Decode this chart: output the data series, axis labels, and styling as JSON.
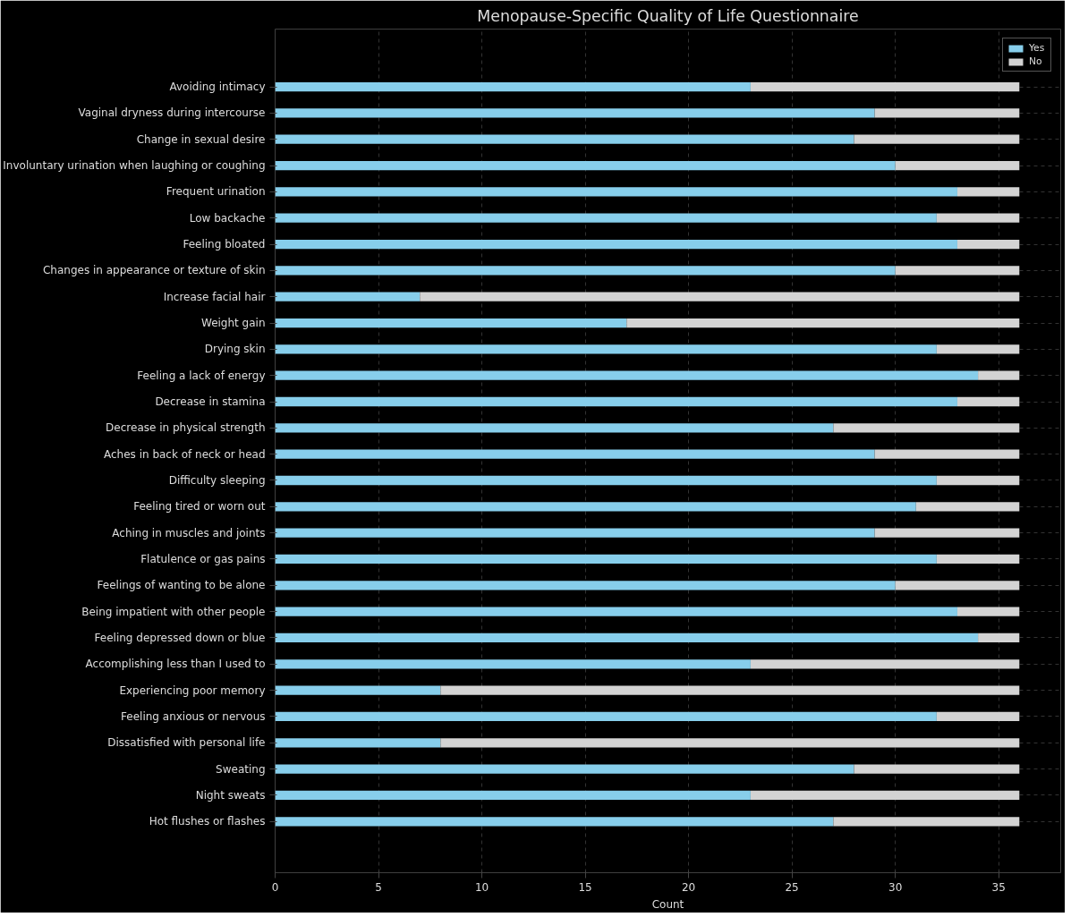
{
  "chart_data": {
    "type": "bar",
    "orientation": "horizontal",
    "stacked": true,
    "title": "Menopause-Specific Quality of Life Questionnaire",
    "xlabel": "Count",
    "categories": [
      "Avoiding intimacy",
      "Vaginal dryness during intercourse",
      "Change in sexual desire",
      "Involuntary urination when laughing or coughing",
      "Frequent urination",
      "Low backache",
      "Feeling bloated",
      "Changes in appearance or texture of skin",
      "Increase facial hair",
      "Weight gain",
      "Drying skin",
      "Feeling a lack of energy",
      "Decrease in stamina",
      "Decrease in physical strength",
      "Aches in back of neck or head",
      "Difficulty sleeping",
      "Feeling tired or worn out",
      "Aching in muscles and joints",
      "Flatulence or gas pains",
      "Feelings of wanting to be alone",
      "Being impatient with other people",
      "Feeling depressed down or blue",
      "Accomplishing less than I used to",
      "Experiencing poor memory",
      "Feeling anxious or nervous",
      "Dissatisfied with personal life",
      "Sweating",
      "Night sweats",
      "Hot flushes or flashes"
    ],
    "series": [
      {
        "name": "Yes",
        "color": "#87ceeb",
        "values": [
          23,
          29,
          28,
          30,
          33,
          32,
          33,
          30,
          7,
          17,
          32,
          34,
          33,
          27,
          29,
          32,
          31,
          29,
          32,
          30,
          33,
          34,
          23,
          8,
          32,
          8,
          28,
          23,
          27
        ]
      },
      {
        "name": "No",
        "color": "#d3d3d3",
        "values": [
          13,
          7,
          8,
          6,
          3,
          4,
          3,
          6,
          29,
          19,
          4,
          2,
          3,
          9,
          7,
          4,
          5,
          7,
          4,
          6,
          3,
          2,
          13,
          28,
          4,
          28,
          8,
          13,
          9
        ]
      }
    ],
    "xlim": [
      0,
      38
    ],
    "xticks": [
      0,
      5,
      10,
      15,
      20,
      25,
      30,
      35
    ],
    "grid": true,
    "legend": "top right"
  }
}
